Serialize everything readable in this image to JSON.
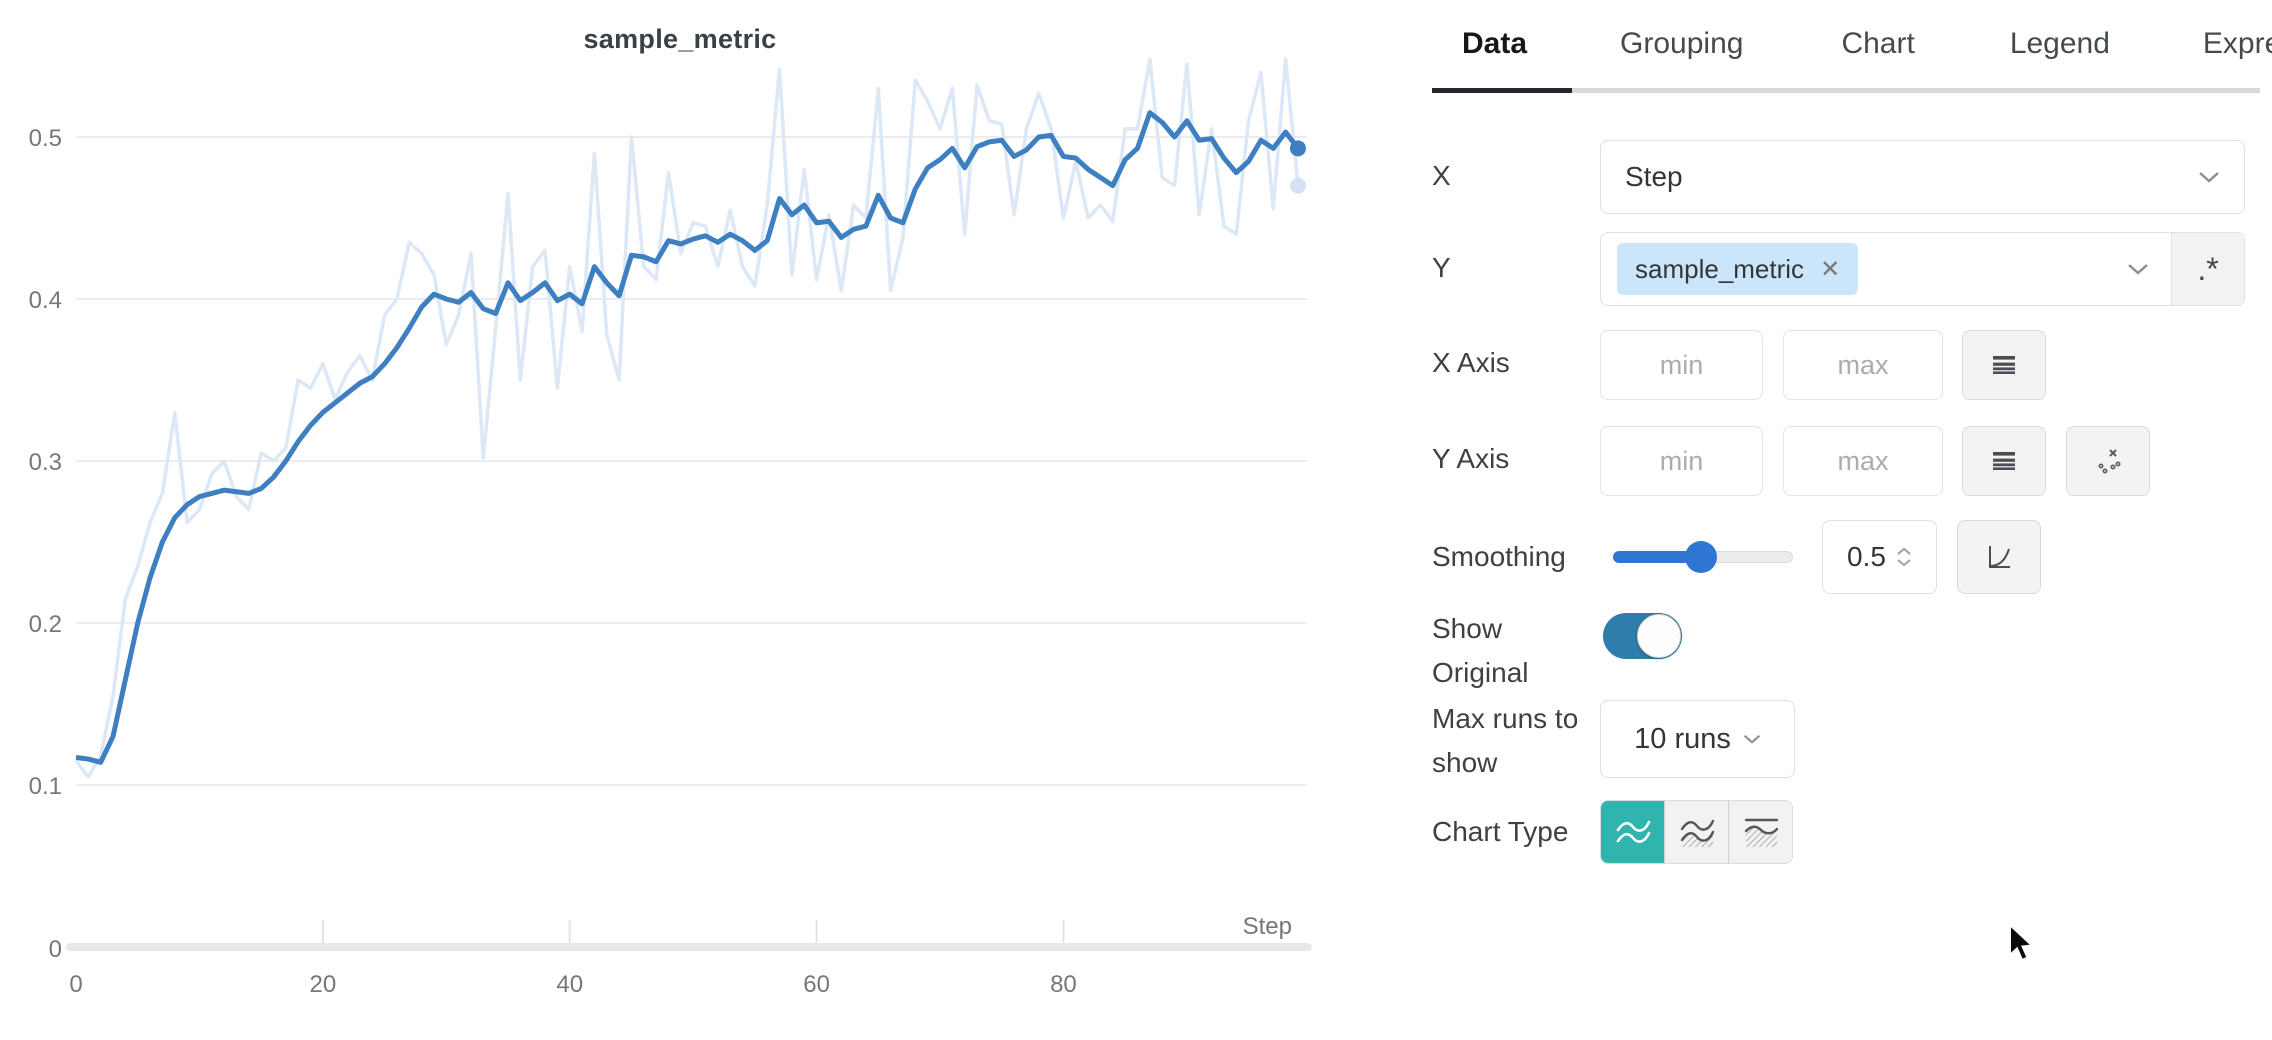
{
  "chart": {
    "title": "sample_metric",
    "x_axis_label": "Step",
    "x_ticks": [
      0,
      20,
      40,
      60,
      80
    ],
    "y_ticks": [
      0.5,
      0.4,
      0.3,
      0.2,
      0.1,
      0
    ],
    "colors": {
      "smoothed_line": "#3e7fc1",
      "original_line": "#dce8f6",
      "end_dot_smoothed": "#3e7fc1",
      "end_dot_original": "#d3e2f4",
      "grid": "#e6e6e6",
      "axis_bar": "#e8e8e8",
      "tick_text": "#757779"
    }
  },
  "chart_data": {
    "type": "line",
    "title": "sample_metric",
    "xlabel": "Step",
    "ylabel": "",
    "xlim": [
      0,
      99
    ],
    "ylim": [
      0,
      0.54
    ],
    "grid": "horizontal",
    "legend": "none",
    "x_description": "steps 0..99, index of values array = step",
    "series": [
      {
        "name": "sample_metric (smoothed 0.5)",
        "values": [
          0.117,
          0.116,
          0.114,
          0.13,
          0.165,
          0.2,
          0.228,
          0.25,
          0.265,
          0.273,
          0.278,
          0.28,
          0.282,
          0.281,
          0.28,
          0.283,
          0.29,
          0.3,
          0.312,
          0.322,
          0.33,
          0.336,
          0.342,
          0.348,
          0.352,
          0.36,
          0.37,
          0.382,
          0.395,
          0.403,
          0.4,
          0.398,
          0.404,
          0.394,
          0.391,
          0.41,
          0.399,
          0.404,
          0.41,
          0.399,
          0.403,
          0.397,
          0.42,
          0.41,
          0.402,
          0.427,
          0.426,
          0.423,
          0.436,
          0.434,
          0.437,
          0.439,
          0.435,
          0.44,
          0.436,
          0.43,
          0.436,
          0.462,
          0.452,
          0.458,
          0.447,
          0.448,
          0.438,
          0.443,
          0.445,
          0.464,
          0.45,
          0.447,
          0.468,
          0.481,
          0.486,
          0.493,
          0.481,
          0.494,
          0.497,
          0.498,
          0.488,
          0.492,
          0.5,
          0.501,
          0.488,
          0.487,
          0.48,
          0.475,
          0.47,
          0.486,
          0.493,
          0.515,
          0.509,
          0.5,
          0.51,
          0.498,
          0.499,
          0.487,
          0.478,
          0.485,
          0.498,
          0.493,
          0.503,
          0.493
        ]
      },
      {
        "name": "sample_metric (original)",
        "values": [
          0.115,
          0.105,
          0.118,
          0.155,
          0.215,
          0.235,
          0.262,
          0.28,
          0.33,
          0.262,
          0.27,
          0.292,
          0.3,
          0.278,
          0.27,
          0.305,
          0.3,
          0.308,
          0.35,
          0.345,
          0.36,
          0.338,
          0.355,
          0.365,
          0.35,
          0.39,
          0.4,
          0.435,
          0.428,
          0.415,
          0.372,
          0.39,
          0.428,
          0.302,
          0.382,
          0.465,
          0.35,
          0.42,
          0.43,
          0.345,
          0.42,
          0.38,
          0.49,
          0.378,
          0.35,
          0.5,
          0.42,
          0.412,
          0.478,
          0.428,
          0.447,
          0.445,
          0.42,
          0.455,
          0.42,
          0.408,
          0.458,
          0.542,
          0.415,
          0.48,
          0.412,
          0.452,
          0.405,
          0.458,
          0.45,
          0.53,
          0.405,
          0.438,
          0.535,
          0.522,
          0.505,
          0.53,
          0.44,
          0.532,
          0.51,
          0.508,
          0.452,
          0.505,
          0.527,
          0.505,
          0.45,
          0.485,
          0.45,
          0.458,
          0.448,
          0.505,
          0.505,
          0.548,
          0.475,
          0.47,
          0.545,
          0.452,
          0.505,
          0.445,
          0.44,
          0.51,
          0.54,
          0.456,
          0.548,
          0.47
        ]
      }
    ]
  },
  "panel": {
    "tabs": [
      {
        "label": "Data",
        "active": true
      },
      {
        "label": "Grouping",
        "active": false
      },
      {
        "label": "Chart",
        "active": false
      },
      {
        "label": "Legend",
        "active": false
      },
      {
        "label": "Expressions",
        "active": false
      }
    ],
    "x_row": {
      "label": "X",
      "value": "Step"
    },
    "y_row": {
      "label": "Y",
      "tag": "sample_metric",
      "remove_icon": "✕",
      "regex": ".*"
    },
    "x_axis_row": {
      "label": "X Axis",
      "min_placeholder": "min",
      "max_placeholder": "max"
    },
    "y_axis_row": {
      "label": "Y Axis",
      "min_placeholder": "min",
      "max_placeholder": "max"
    },
    "smoothing_row": {
      "label": "Smoothing",
      "value": "0.5"
    },
    "show_original_row": {
      "label": "Show Original",
      "state": "on"
    },
    "max_runs_row": {
      "label": "Max runs to show",
      "value": "10 runs"
    },
    "chart_type_row": {
      "label": "Chart Type",
      "selected": "line"
    },
    "accent": {
      "teal": "#2fb5ad",
      "toggle_blue": "#2e7daa",
      "slider_blue": "#2d76d2"
    }
  }
}
